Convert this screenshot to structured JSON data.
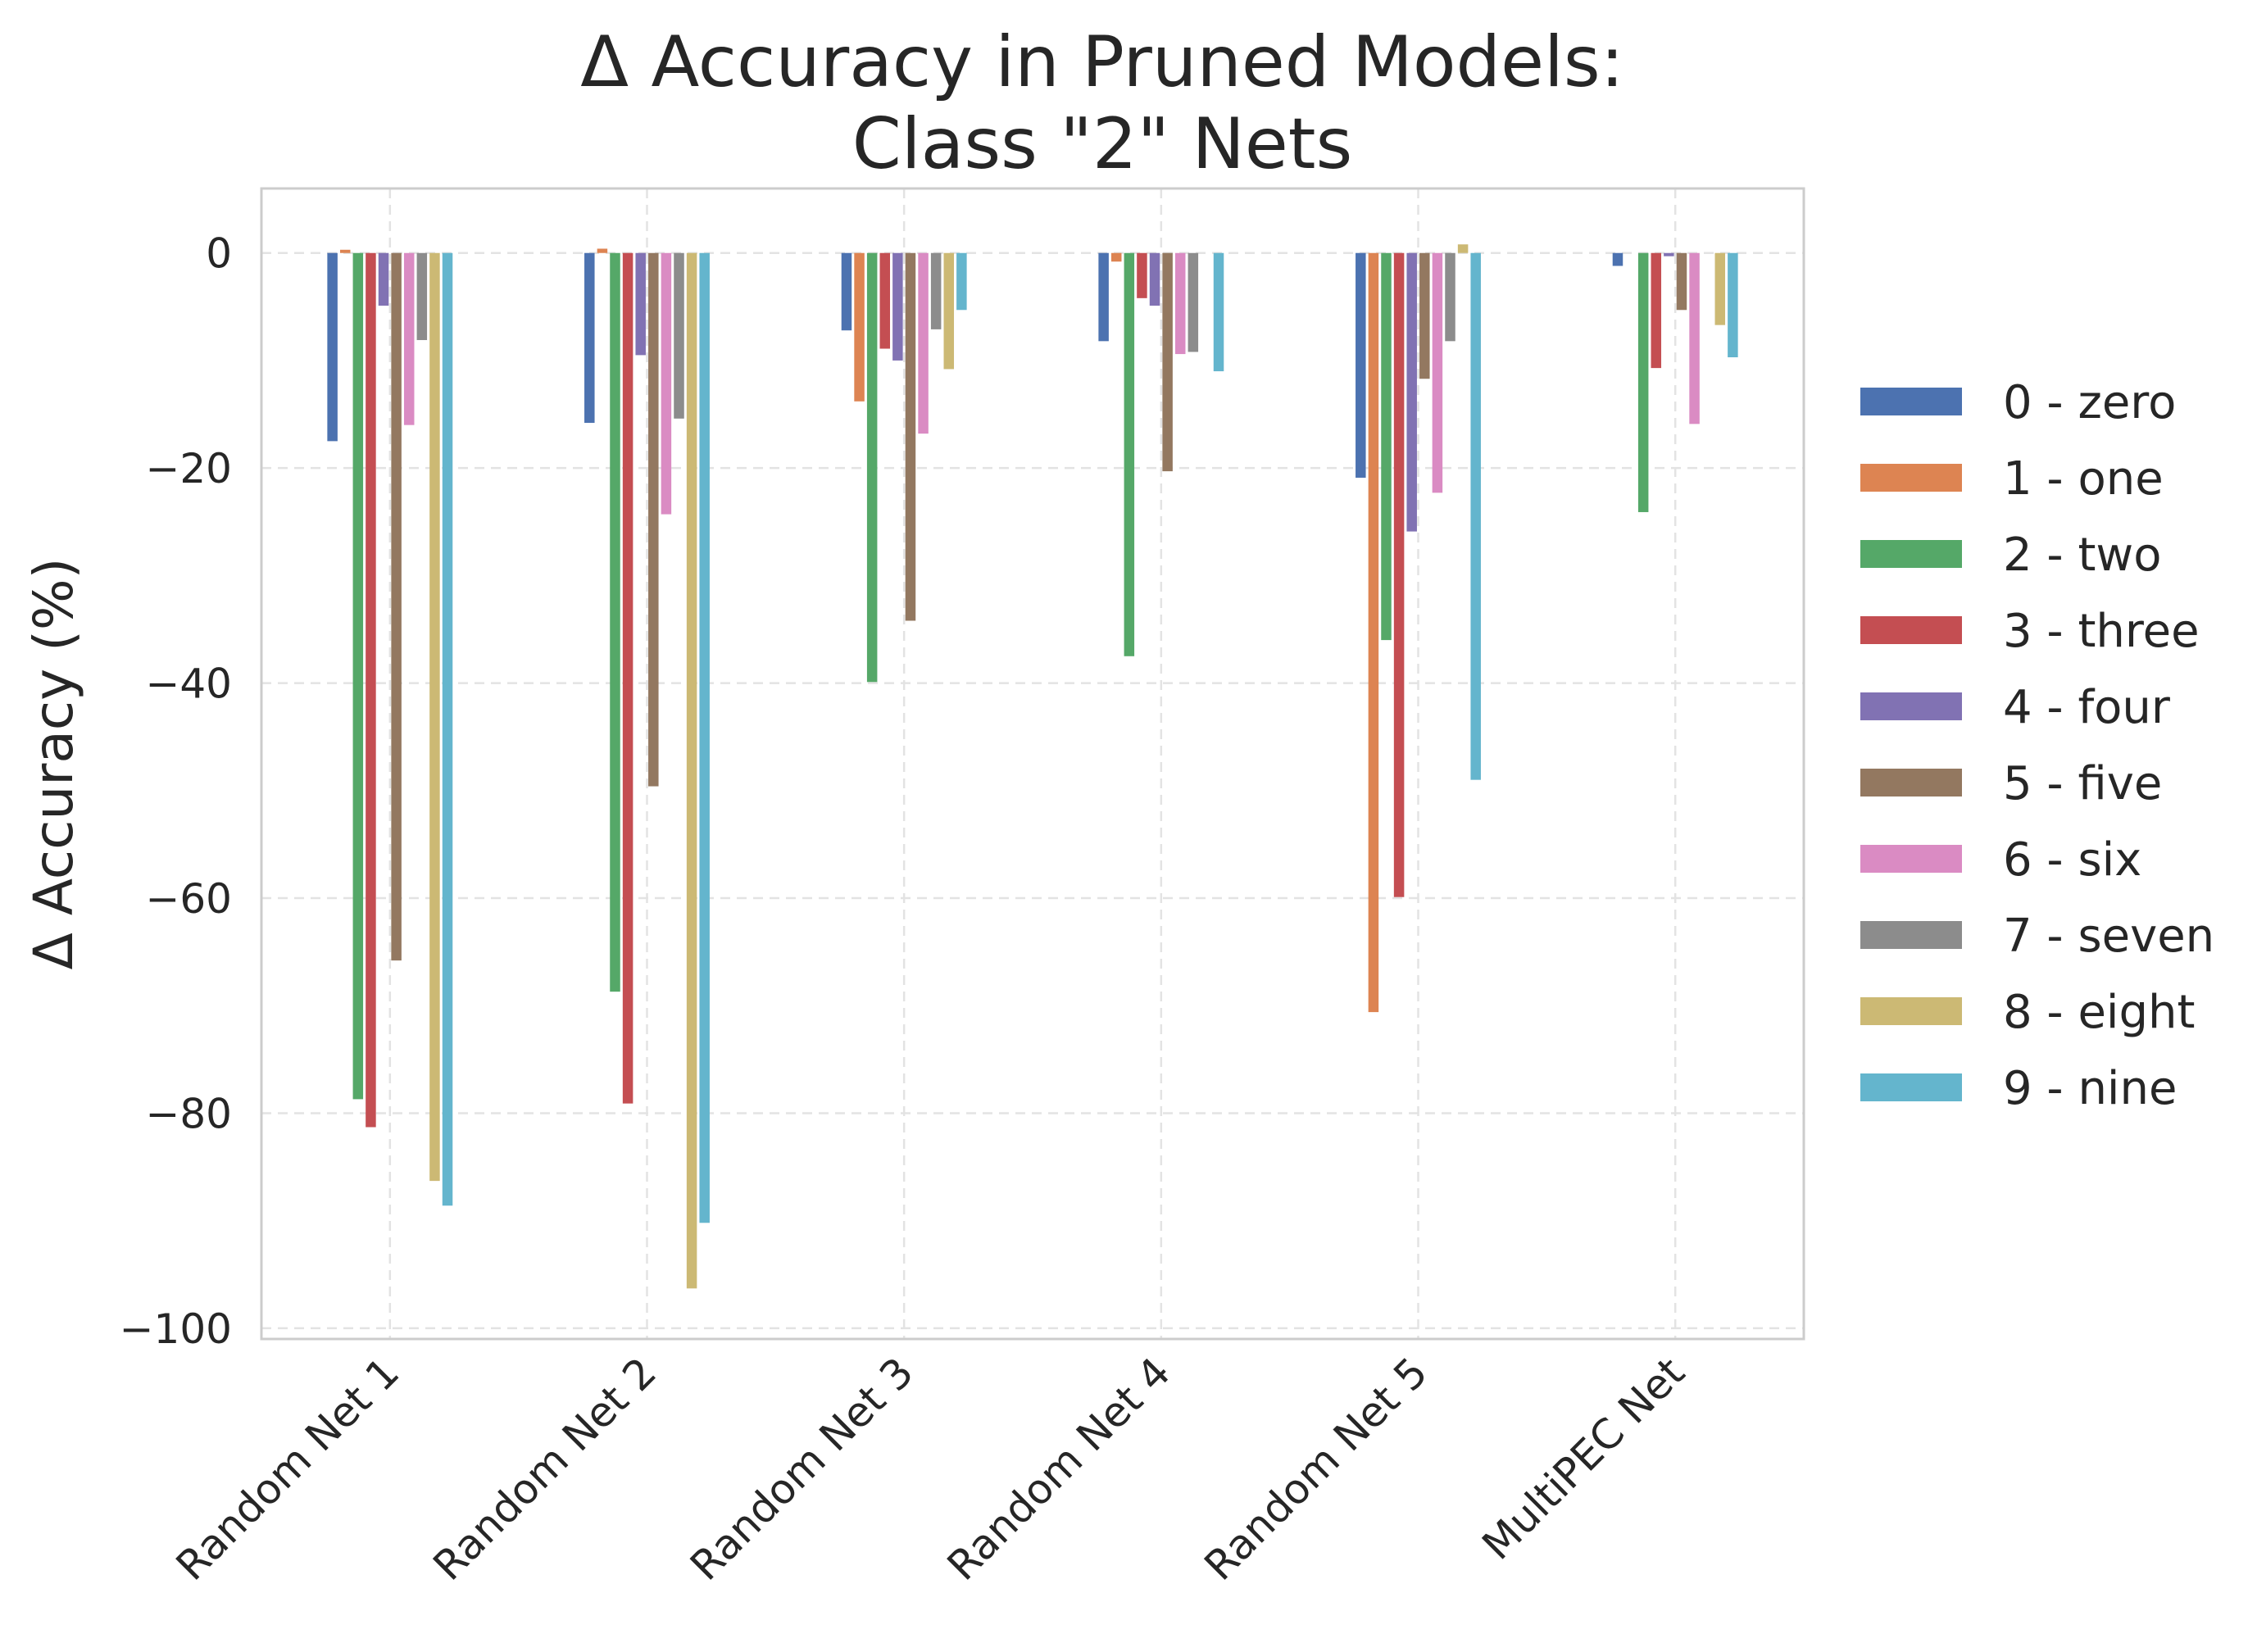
{
  "chart_data": {
    "type": "bar",
    "title_lines": [
      "Δ Accuracy in Pruned Models:",
      "Class \"2\" Nets"
    ],
    "xlabel": "",
    "ylabel": "Δ Accuracy (%)",
    "ylim": [
      -101,
      6
    ],
    "yticks": [
      0,
      -20,
      -40,
      -60,
      -80,
      -100
    ],
    "ytick_labels": [
      "0",
      "−20",
      "−40",
      "−60",
      "−80",
      "−100"
    ],
    "grid": true,
    "legend_position": "right",
    "categories": [
      "Random Net 1",
      "Random Net 2",
      "Random Net 3",
      "Random Net 4",
      "Random Net 5",
      "MultiPEC Net"
    ],
    "series": [
      {
        "name": "0 - zero",
        "color": "#4c72b0",
        "values": [
          -17.5,
          -15.8,
          -7.2,
          -8.2,
          -20.9,
          -1.2
        ]
      },
      {
        "name": "1 - one",
        "color": "#dd8452",
        "values": [
          0.3,
          0.4,
          -13.8,
          -0.8,
          -70.6,
          0.0
        ]
      },
      {
        "name": "2 - two",
        "color": "#55a868",
        "values": [
          -78.7,
          -68.7,
          -39.9,
          -37.5,
          -36.0,
          -24.1
        ]
      },
      {
        "name": "3 - three",
        "color": "#c44e52",
        "values": [
          -81.3,
          -79.1,
          -8.9,
          -4.2,
          -59.9,
          -10.7
        ]
      },
      {
        "name": "4 - four",
        "color": "#8172b3",
        "values": [
          -4.9,
          -9.5,
          -10.0,
          -4.9,
          -25.9,
          -0.3
        ]
      },
      {
        "name": "5 - five",
        "color": "#937860",
        "values": [
          -65.8,
          -49.6,
          -34.2,
          -20.3,
          -11.7,
          -5.3
        ]
      },
      {
        "name": "6 - six",
        "color": "#da8bc3",
        "values": [
          -16.0,
          -24.3,
          -16.8,
          -9.4,
          -22.3,
          -15.9
        ]
      },
      {
        "name": "7 - seven",
        "color": "#8c8c8c",
        "values": [
          -8.1,
          -15.4,
          -7.1,
          -9.2,
          -8.2,
          0.0
        ]
      },
      {
        "name": "8 - eight",
        "color": "#ccb974",
        "values": [
          -86.3,
          -96.3,
          -10.8,
          0.0,
          0.8,
          -6.7
        ]
      },
      {
        "name": "9 - nine",
        "color": "#64b5cd",
        "values": [
          -88.6,
          -90.2,
          -5.3,
          -11.0,
          -49.0,
          -9.7
        ]
      }
    ]
  }
}
